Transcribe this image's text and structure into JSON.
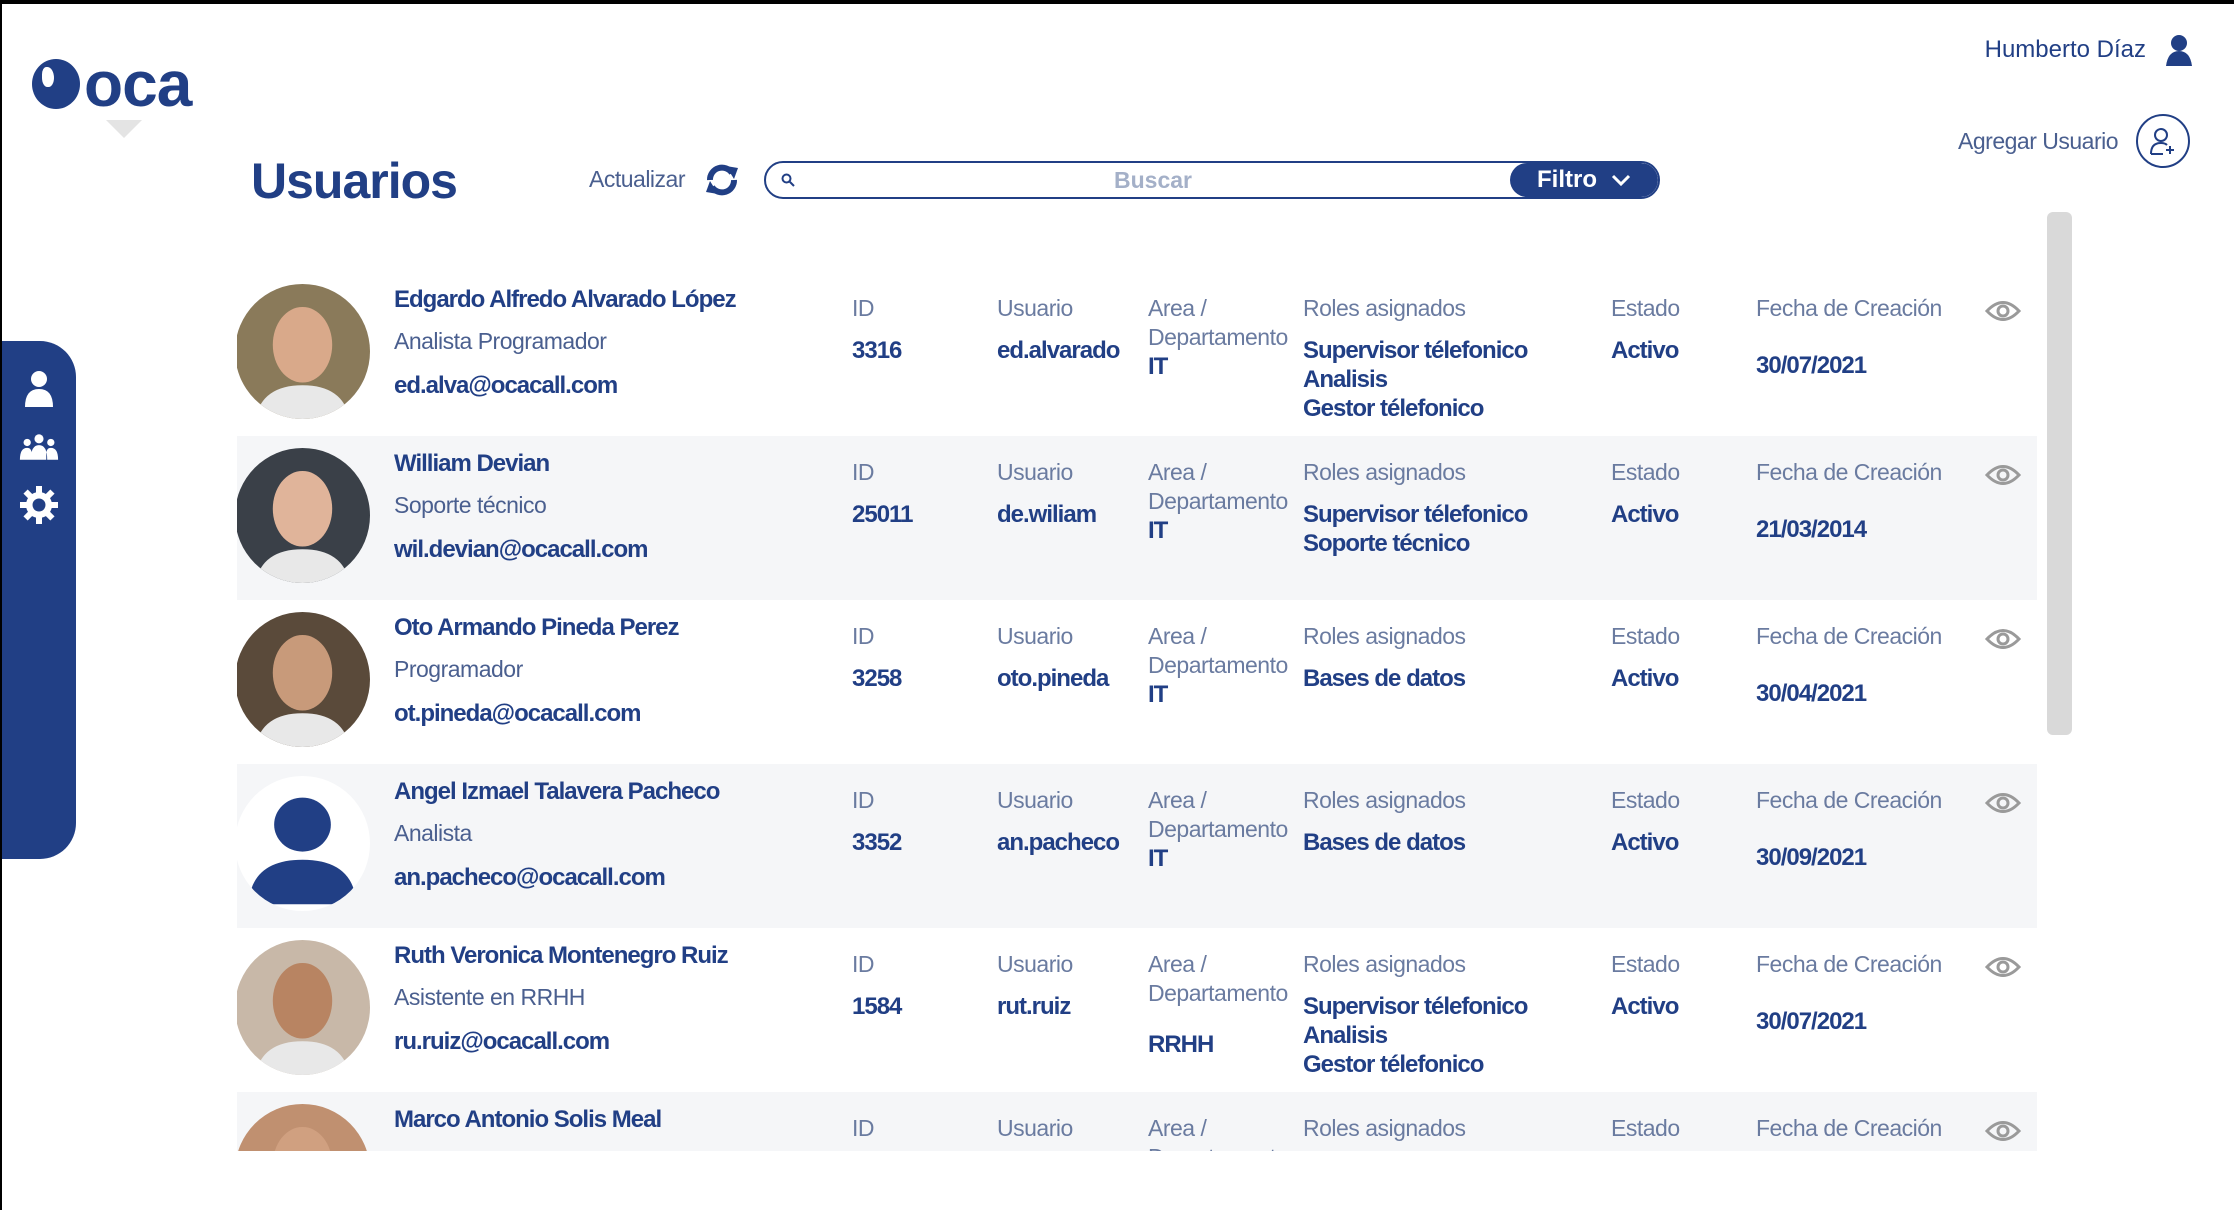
{
  "brand": {
    "logo_text": "oca"
  },
  "header": {
    "user_name": "Humberto Díaz",
    "add_user_label": "Agregar Usuario"
  },
  "page": {
    "title": "Usuarios",
    "refresh_label": "Actualizar",
    "search_placeholder": "Buscar",
    "filter_label": "Filtro"
  },
  "sidebar": {
    "items": [
      {
        "icon": "user-icon"
      },
      {
        "icon": "group-icon"
      },
      {
        "icon": "gear-icon"
      }
    ]
  },
  "labels": {
    "id": "ID",
    "usuario": "Usuario",
    "area": "Area /",
    "departamento": "Departamento",
    "roles": "Roles asignados",
    "estado": "Estado",
    "fecha": "Fecha de Creación"
  },
  "users": [
    {
      "name": "Edgardo Alfredo Alvarado López",
      "role": "Analista Programador",
      "email": "ed.alva@ocacall.com",
      "id": "3316",
      "usuario": "ed.alvarado",
      "area": "IT",
      "roles": [
        "Supervisor télefonico",
        "Analisis",
        "Gestor télefonico"
      ],
      "estado": "Activo",
      "fecha": "30/07/2021",
      "avatar": "photo"
    },
    {
      "name": "William Devian",
      "role": "Soporte técnico",
      "email": "wil.devian@ocacall.com",
      "id": "25011",
      "usuario": "de.wiliam",
      "area": "IT",
      "roles": [
        "Supervisor télefonico",
        "Soporte técnico"
      ],
      "estado": "Activo",
      "fecha": "21/03/2014",
      "avatar": "photo"
    },
    {
      "name": "Oto Armando Pineda Perez",
      "role": "Programador",
      "email": "ot.pineda@ocacall.com",
      "id": "3258",
      "usuario": "oto.pineda",
      "area": "IT",
      "roles": [
        "Bases de datos"
      ],
      "estado": "Activo",
      "fecha": "30/04/2021",
      "avatar": "photo"
    },
    {
      "name": "Angel Izmael Talavera Pacheco",
      "role": "Analista",
      "email": "an.pacheco@ocacall.com",
      "id": "3352",
      "usuario": "an.pacheco",
      "area": "IT",
      "roles": [
        "Bases de datos"
      ],
      "estado": "Activo",
      "fecha": "30/09/2021",
      "avatar": "default"
    },
    {
      "name": "Ruth Veronica Montenegro Ruiz",
      "role": "Asistente en RRHH",
      "email": "ru.ruiz@ocacall.com",
      "id": "1584",
      "usuario": "rut.ruiz",
      "area": "RRHH",
      "roles": [
        "Supervisor télefonico",
        "Analisis",
        "Gestor télefonico"
      ],
      "estado": "Activo",
      "fecha": "30/07/2021",
      "avatar": "photo"
    },
    {
      "name": "Marco Antonio Solis Meal",
      "avatar": "photo"
    }
  ]
}
